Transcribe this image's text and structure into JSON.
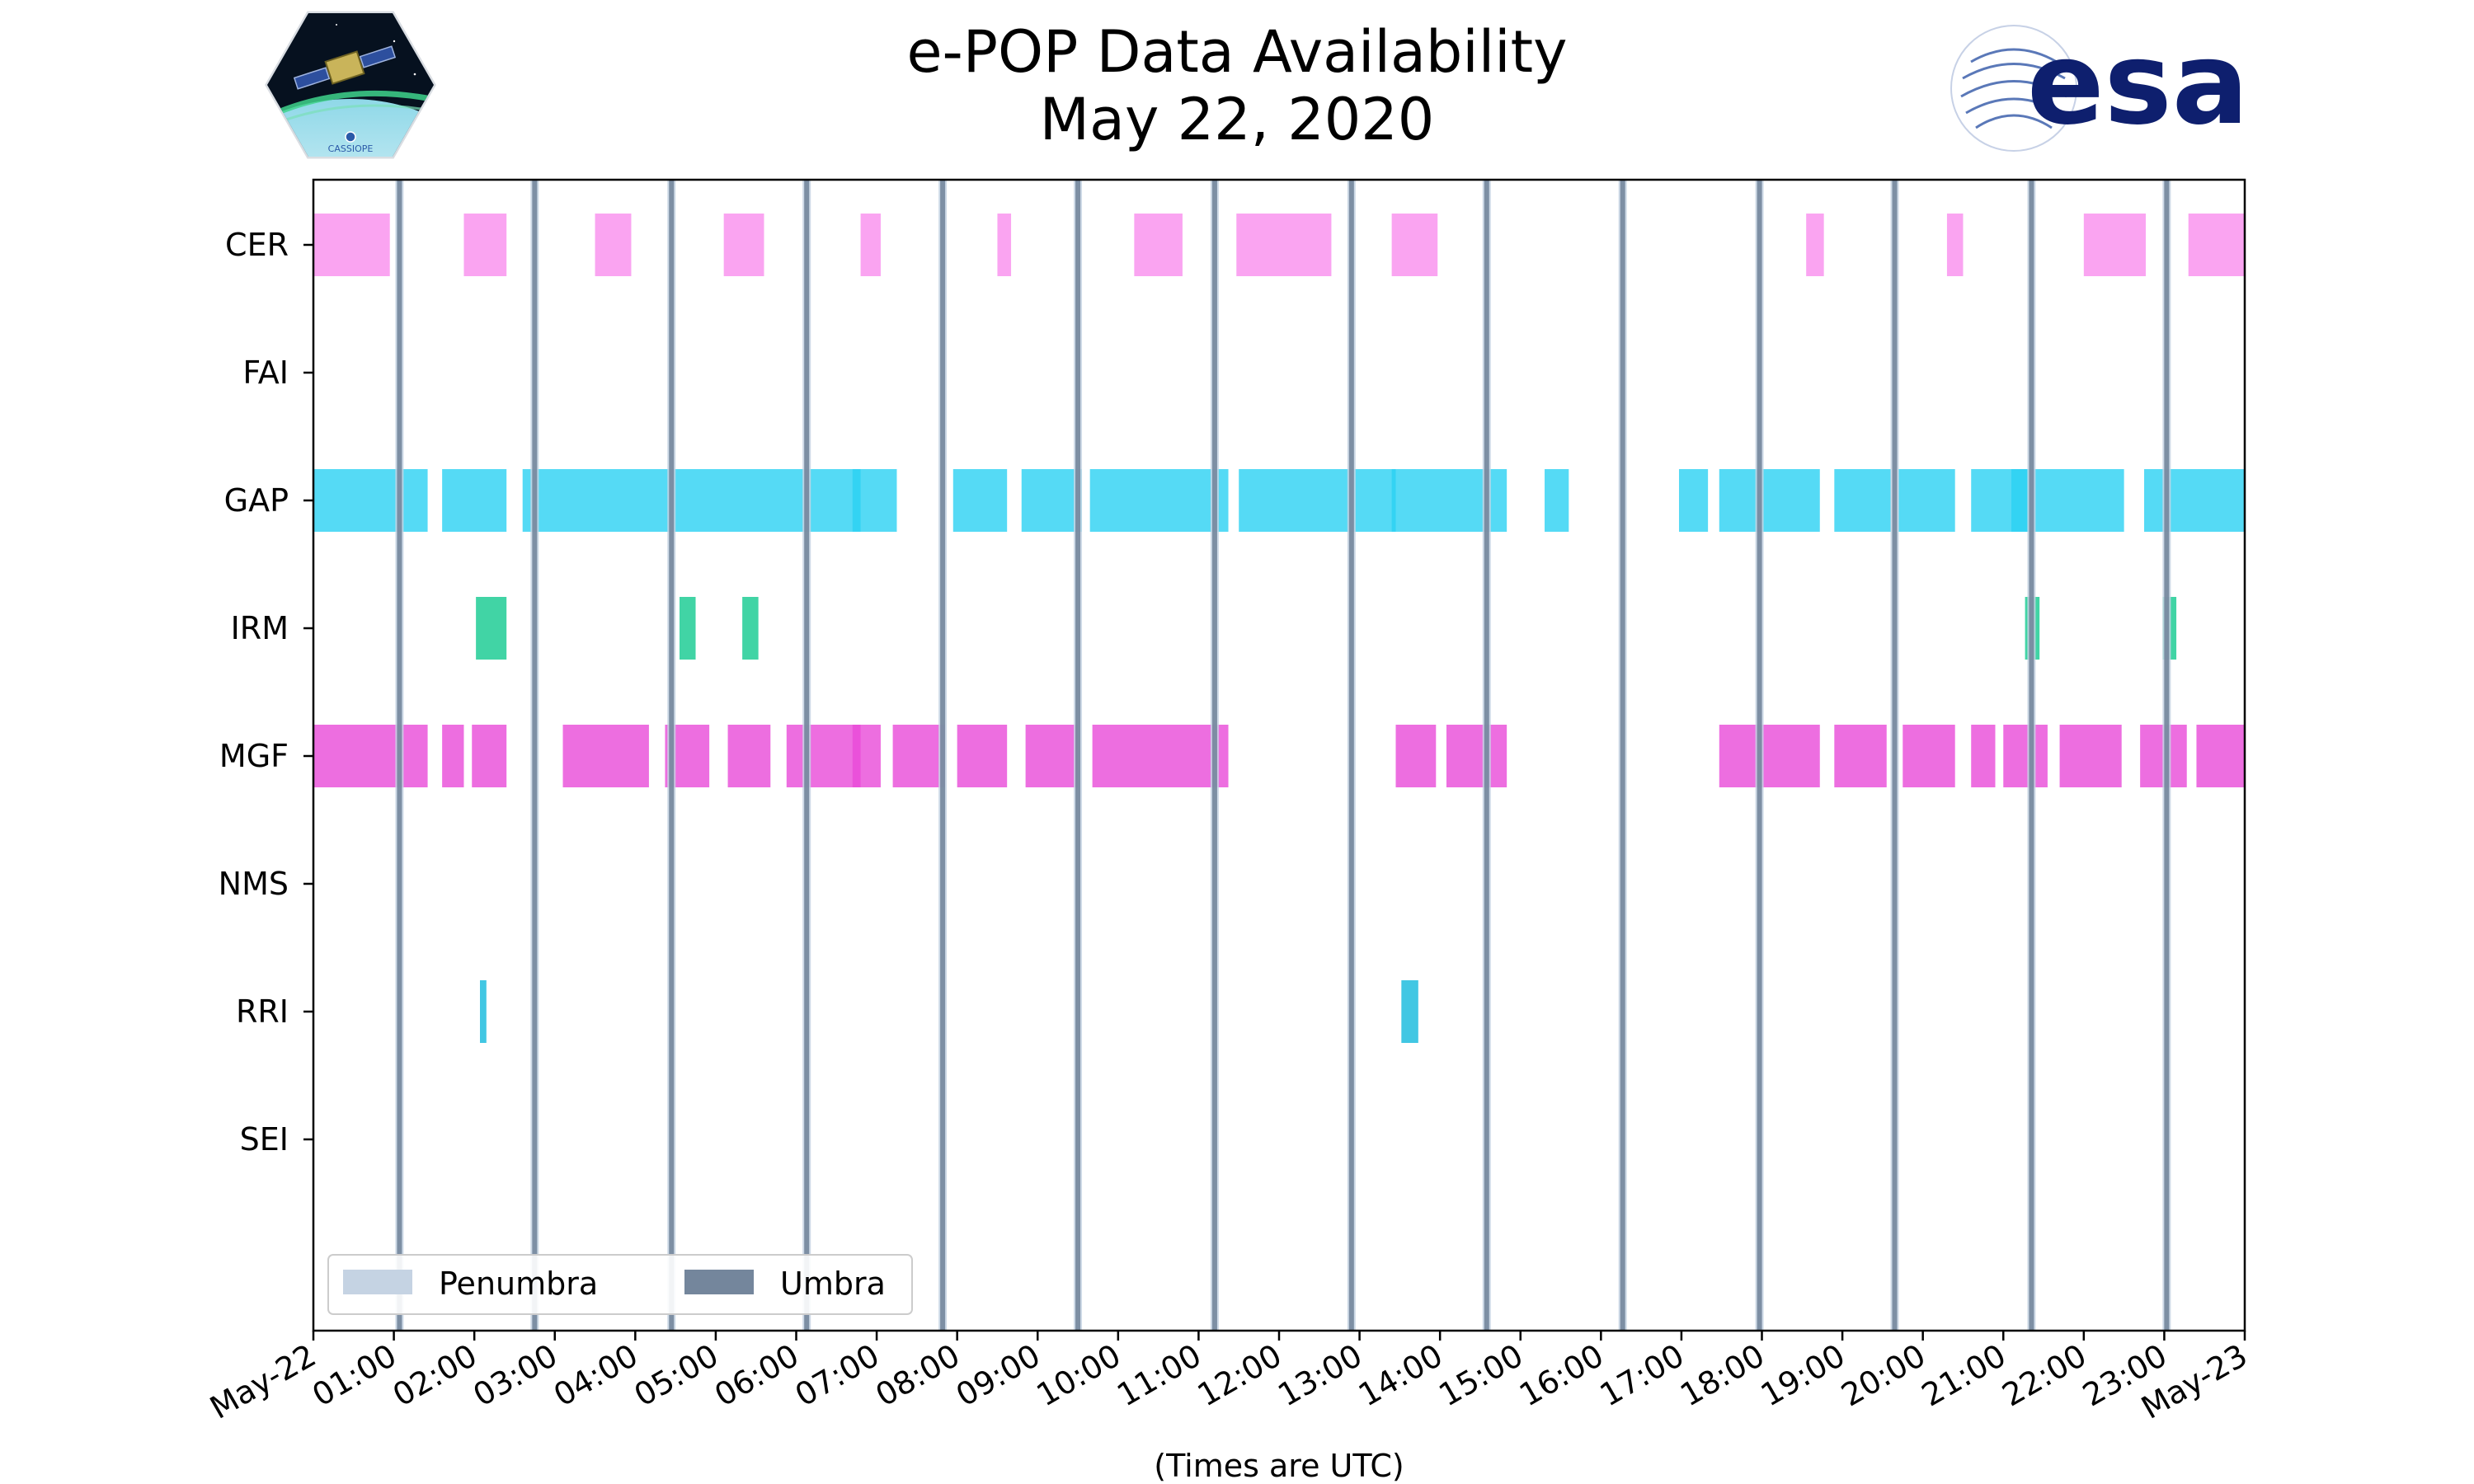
{
  "chart_data": {
    "type": "timeline",
    "title": "e-POP Data Availability",
    "subtitle": "May 22, 2020",
    "xlabel": "(Times are UTC)",
    "x_range_hours": [
      0,
      24
    ],
    "x_tick_labels": [
      "May-22",
      "01:00",
      "02:00",
      "03:00",
      "04:00",
      "05:00",
      "06:00",
      "07:00",
      "08:00",
      "09:00",
      "10:00",
      "11:00",
      "12:00",
      "13:00",
      "14:00",
      "15:00",
      "16:00",
      "17:00",
      "18:00",
      "19:00",
      "20:00",
      "21:00",
      "22:00",
      "23:00",
      "May-23"
    ],
    "instruments": [
      "CER",
      "FAI",
      "GAP",
      "IRM",
      "MGF",
      "NMS",
      "RRI",
      "SEI"
    ],
    "colors": {
      "CER": "#f98ded",
      "GAP": "#2ad1f2",
      "IRM": "#12c98f",
      "MGF": "#e84ad8",
      "RRI": "#12b9dc",
      "penumbra": "#c5d3e3",
      "umbra": "#74869c"
    },
    "series": [
      {
        "name": "CER",
        "intervals": [
          [
            0.0,
            0.95
          ],
          [
            1.87,
            2.4
          ],
          [
            3.5,
            3.95
          ],
          [
            5.1,
            5.6
          ],
          [
            6.8,
            7.05
          ],
          [
            8.5,
            8.67
          ],
          [
            10.2,
            10.8
          ],
          [
            11.47,
            12.65
          ],
          [
            13.4,
            13.97
          ],
          [
            18.55,
            18.77
          ],
          [
            20.3,
            20.5
          ],
          [
            22.0,
            22.77
          ],
          [
            23.3,
            24.0
          ]
        ]
      },
      {
        "name": "FAI",
        "intervals": []
      },
      {
        "name": "GAP",
        "intervals": [
          [
            0.0,
            1.42
          ],
          [
            1.6,
            2.4
          ],
          [
            2.6,
            6.8
          ],
          [
            6.7,
            7.25
          ],
          [
            7.95,
            8.62
          ],
          [
            8.8,
            9.55
          ],
          [
            9.65,
            11.37
          ],
          [
            11.5,
            13.45
          ],
          [
            13.4,
            14.83
          ],
          [
            15.3,
            15.6
          ],
          [
            16.97,
            17.33
          ],
          [
            17.47,
            18.72
          ],
          [
            18.9,
            19.6
          ],
          [
            19.7,
            20.4
          ],
          [
            20.6,
            21.3
          ],
          [
            21.1,
            22.5
          ],
          [
            22.75,
            24.0
          ]
        ]
      },
      {
        "name": "IRM",
        "intervals": [
          [
            2.02,
            2.4
          ],
          [
            4.55,
            4.75
          ],
          [
            5.33,
            5.53
          ],
          [
            21.27,
            21.45
          ],
          [
            22.98,
            23.15
          ]
        ]
      },
      {
        "name": "MGF",
        "intervals": [
          [
            0.0,
            1.42
          ],
          [
            1.6,
            1.87
          ],
          [
            1.97,
            2.4
          ],
          [
            3.1,
            4.17
          ],
          [
            4.37,
            4.92
          ],
          [
            5.15,
            5.68
          ],
          [
            5.88,
            6.8
          ],
          [
            6.7,
            7.05
          ],
          [
            7.2,
            7.85
          ],
          [
            8.0,
            8.62
          ],
          [
            8.85,
            9.5
          ],
          [
            9.68,
            11.37
          ],
          [
            13.45,
            13.95
          ],
          [
            14.08,
            14.83
          ],
          [
            17.47,
            18.72
          ],
          [
            18.9,
            19.55
          ],
          [
            19.75,
            20.4
          ],
          [
            20.6,
            20.9
          ],
          [
            21.0,
            21.55
          ],
          [
            21.7,
            22.47
          ],
          [
            22.7,
            23.28
          ],
          [
            23.4,
            24.0
          ]
        ]
      },
      {
        "name": "NMS",
        "intervals": []
      },
      {
        "name": "RRI",
        "intervals": [
          [
            2.07,
            2.15
          ],
          [
            13.52,
            13.73
          ]
        ]
      },
      {
        "name": "SEI",
        "intervals": []
      }
    ],
    "umbra_times_hours": [
      1.07,
      2.75,
      4.45,
      6.13,
      7.82,
      9.5,
      11.2,
      12.9,
      14.58,
      16.27,
      17.97,
      19.65,
      21.35,
      23.03
    ],
    "legend": {
      "position": "bottom-left",
      "entries": [
        "Penumbra",
        "Umbra"
      ]
    }
  },
  "logos": {
    "cassiope_text": "CASSIOPE",
    "esa_text": "esa"
  }
}
